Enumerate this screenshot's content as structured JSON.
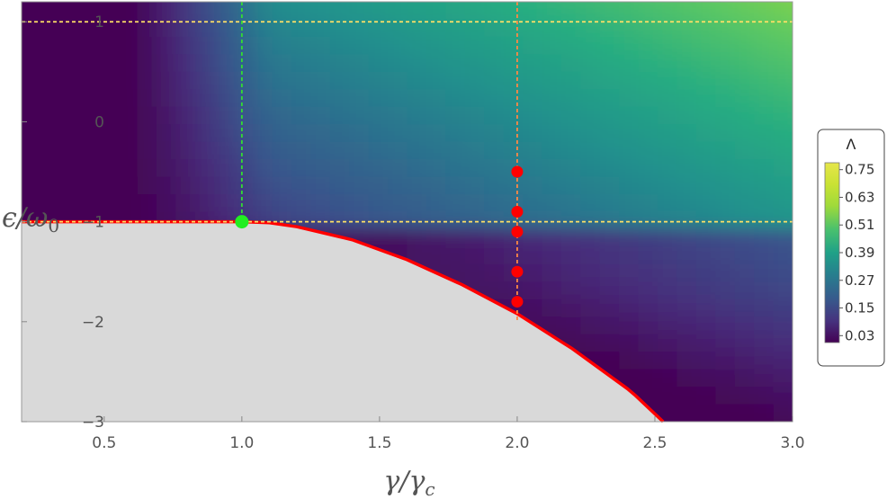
{
  "chart_data": {
    "type": "heatmap",
    "xlabel": "γ/γ",
    "xlabel_sub": "c",
    "ylabel": "ϵ/ω",
    "ylabel_sub": "0",
    "xlim": [
      0.2,
      3.0
    ],
    "ylim": [
      -3.0,
      1.2
    ],
    "x_ticks": [
      "0.5",
      "1.0",
      "1.5",
      "2.0",
      "2.5",
      "3.0"
    ],
    "x_tick_values": [
      0.5,
      1.0,
      1.5,
      2.0,
      2.5,
      3.0
    ],
    "y_ticks": [
      "1",
      "0",
      "−1",
      "−2",
      "−3"
    ],
    "y_tick_values": [
      1,
      0,
      -1,
      -2,
      -3
    ],
    "colorbar": {
      "title": "Λ",
      "ticks": [
        "0.75",
        "0.63",
        "0.51",
        "0.39",
        "0.27",
        "0.15",
        "0.03"
      ],
      "tick_values": [
        0.75,
        0.63,
        0.51,
        0.39,
        0.27,
        0.15,
        0.03
      ],
      "range": [
        0.0,
        0.78
      ],
      "colormap": "viridis"
    },
    "excluded_region_color": "#d9d9d9",
    "boundary_curve": {
      "color": "#ff0000",
      "points": [
        [
          0.2,
          -1.0
        ],
        [
          1.0,
          -1.0
        ],
        [
          1.1,
          -1.01
        ],
        [
          1.2,
          -1.05
        ],
        [
          1.4,
          -1.18
        ],
        [
          1.6,
          -1.38
        ],
        [
          1.8,
          -1.63
        ],
        [
          2.0,
          -1.92
        ],
        [
          2.2,
          -2.27
        ],
        [
          2.4,
          -2.67
        ],
        [
          2.43,
          -2.74
        ],
        [
          2.53,
          -3.0
        ]
      ]
    },
    "reference_lines": [
      {
        "orientation": "horizontal",
        "value": 1.0,
        "color": "#ffe066"
      },
      {
        "orientation": "horizontal",
        "value": -1.0,
        "color": "#ffe066"
      },
      {
        "orientation": "vertical",
        "value": 1.0,
        "color": "#33dd33",
        "range": [
          -1.0,
          1.2
        ]
      },
      {
        "orientation": "vertical",
        "value": 2.0,
        "color": "#ff8844",
        "range": [
          -2.0,
          1.2
        ]
      }
    ],
    "critical_point": {
      "x": 1.0,
      "y": -1.0,
      "color": "#22ee22"
    },
    "marked_points": {
      "color": "#ff0000",
      "points": [
        [
          2.0,
          -0.5
        ],
        [
          2.0,
          -0.9
        ],
        [
          2.0,
          -1.1
        ],
        [
          2.0,
          -1.5
        ],
        [
          2.0,
          -1.8
        ]
      ]
    }
  }
}
